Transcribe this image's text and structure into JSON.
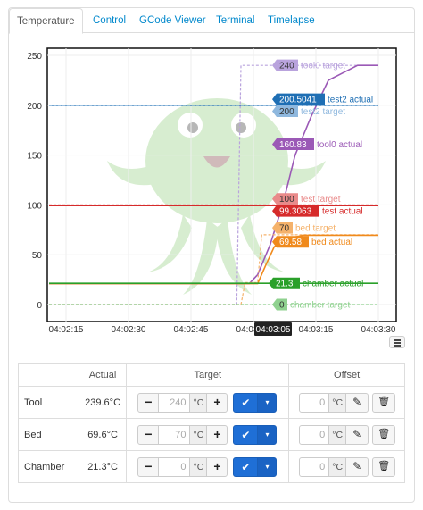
{
  "tabs": [
    {
      "label": "Temperature",
      "active": true
    },
    {
      "label": "Control"
    },
    {
      "label": "GCode Viewer"
    },
    {
      "label": "Terminal"
    },
    {
      "label": "Timelapse"
    }
  ],
  "chart_data": {
    "type": "line",
    "ylim": [
      0,
      260
    ],
    "y_ticks": [
      "250",
      "200",
      "150",
      "100",
      "50",
      "0"
    ],
    "x_ticks": [
      "04:02:15",
      "04:02:30",
      "04:02:45",
      "04:03:00",
      "04:03:15",
      "04:03:30"
    ],
    "hover_x_label": "04:03:05",
    "series": [
      {
        "name": "tool0 target",
        "color": "#b9a3dd",
        "dashed": true,
        "points": [
          [
            135,
            0
          ],
          [
            176,
            0
          ],
          [
            177,
            240
          ],
          [
            210,
            240
          ]
        ],
        "label_value": "240"
      },
      {
        "name": "tool0 actual",
        "color": "#9b59b6",
        "dashed": false,
        "points": [
          [
            135,
            21
          ],
          [
            179,
            21
          ],
          [
            181,
            30
          ],
          [
            184,
            60
          ],
          [
            187,
            100
          ],
          [
            190,
            150
          ],
          [
            194,
            190
          ],
          [
            198,
            225
          ],
          [
            205,
            240
          ],
          [
            210,
            240
          ]
        ],
        "label_value": "160.83"
      },
      {
        "name": "test2 actual",
        "color": "#1f6fb4",
        "dashed": false,
        "points": [
          [
            135,
            200
          ],
          [
            210,
            200
          ]
        ],
        "label_value": "200.5041"
      },
      {
        "name": "test2 target",
        "color": "#8fb8de",
        "dashed": true,
        "points": [
          [
            135,
            200
          ],
          [
            210,
            200
          ]
        ],
        "label_value": "200"
      },
      {
        "name": "test target",
        "color": "#e98a8a",
        "dashed": true,
        "points": [
          [
            135,
            100
          ],
          [
            210,
            100
          ]
        ],
        "label_value": "100"
      },
      {
        "name": "test actual",
        "color": "#d62b2b",
        "dashed": false,
        "points": [
          [
            135,
            99.3
          ],
          [
            210,
            99.3
          ]
        ],
        "label_value": "99.3063"
      },
      {
        "name": "bed target",
        "color": "#f5b26b",
        "dashed": true,
        "points": [
          [
            135,
            0
          ],
          [
            177,
            0
          ],
          [
            178,
            22
          ],
          [
            181,
            22
          ],
          [
            182,
            70
          ],
          [
            210,
            70
          ]
        ],
        "label_value": "70"
      },
      {
        "name": "bed actual",
        "color": "#f08a1c",
        "dashed": false,
        "points": [
          [
            135,
            21
          ],
          [
            181,
            21
          ],
          [
            183,
            40
          ],
          [
            185,
            58
          ],
          [
            188,
            66
          ],
          [
            192,
            69.5
          ],
          [
            210,
            69.5
          ]
        ],
        "label_value": "69.58"
      },
      {
        "name": "chamber actual",
        "color": "#2aa02a",
        "dashed": false,
        "points": [
          [
            135,
            21.3
          ],
          [
            210,
            21.3
          ]
        ],
        "label_value": "21.3"
      },
      {
        "name": "chamber target",
        "color": "#8fd18f",
        "dashed": true,
        "points": [
          [
            135,
            0
          ],
          [
            210,
            0
          ]
        ],
        "label_value": "0"
      }
    ]
  },
  "table": {
    "headers": [
      "",
      "Actual",
      "Target",
      "Offset"
    ],
    "rows": [
      {
        "name": "Tool",
        "actual": "239.6°C",
        "target": "240",
        "offset": "0"
      },
      {
        "name": "Bed",
        "actual": "69.6°C",
        "target": "70",
        "offset": "0"
      },
      {
        "name": "Chamber",
        "actual": "21.3°C",
        "target": "0",
        "offset": "0"
      }
    ],
    "unit": "°C",
    "minus": "−",
    "plus": "+",
    "check": "✔",
    "caret": "▾",
    "pencil": "✎",
    "trash": "🗑"
  }
}
